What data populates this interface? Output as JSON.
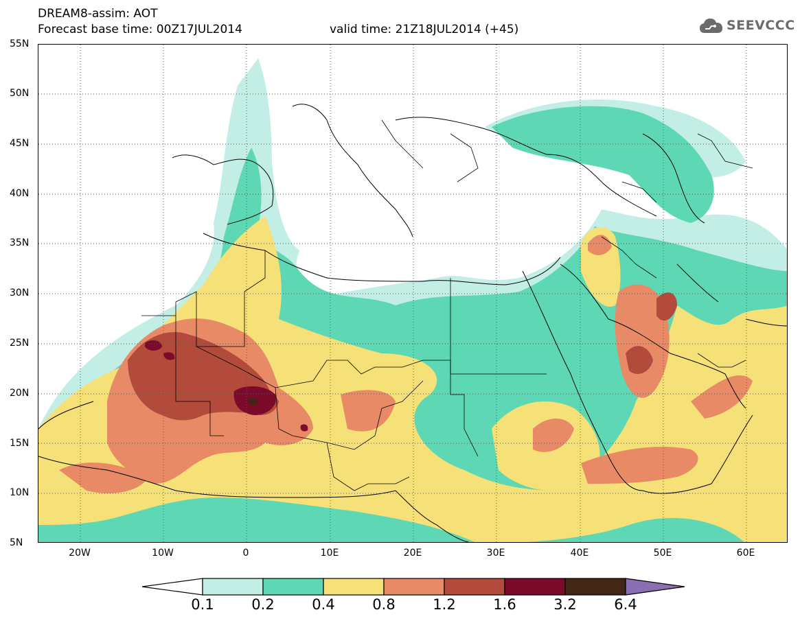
{
  "header": {
    "title": "DREAM8-assim: AOT",
    "base_time": "Forecast base time: 00Z17JUL2014",
    "valid_time": "valid time: 21Z18JUL2014 (+45)"
  },
  "logo": {
    "text": "SEEVCCC",
    "icon": "cloud-icon"
  },
  "map": {
    "lat_labels": [
      "55N",
      "50N",
      "45N",
      "40N",
      "35N",
      "30N",
      "25N",
      "20N",
      "15N",
      "10N",
      "5N"
    ],
    "lon_labels": [
      "20W",
      "10W",
      "0",
      "10E",
      "20E",
      "30E",
      "40E",
      "50E",
      "60E"
    ],
    "lon_range": [
      -25,
      65
    ],
    "lat_range": [
      5,
      55
    ],
    "grid": "dotted"
  },
  "legend": {
    "levels": [
      "0.1",
      "0.2",
      "0.4",
      "0.8",
      "1.2",
      "1.6",
      "3.2",
      "6.4"
    ],
    "colors": [
      "#c2eee6",
      "#5ed8b4",
      "#f5e177",
      "#e88a65",
      "#b24b3c",
      "#7c0a2a",
      "#432616",
      "#8b6fb3"
    ]
  }
}
